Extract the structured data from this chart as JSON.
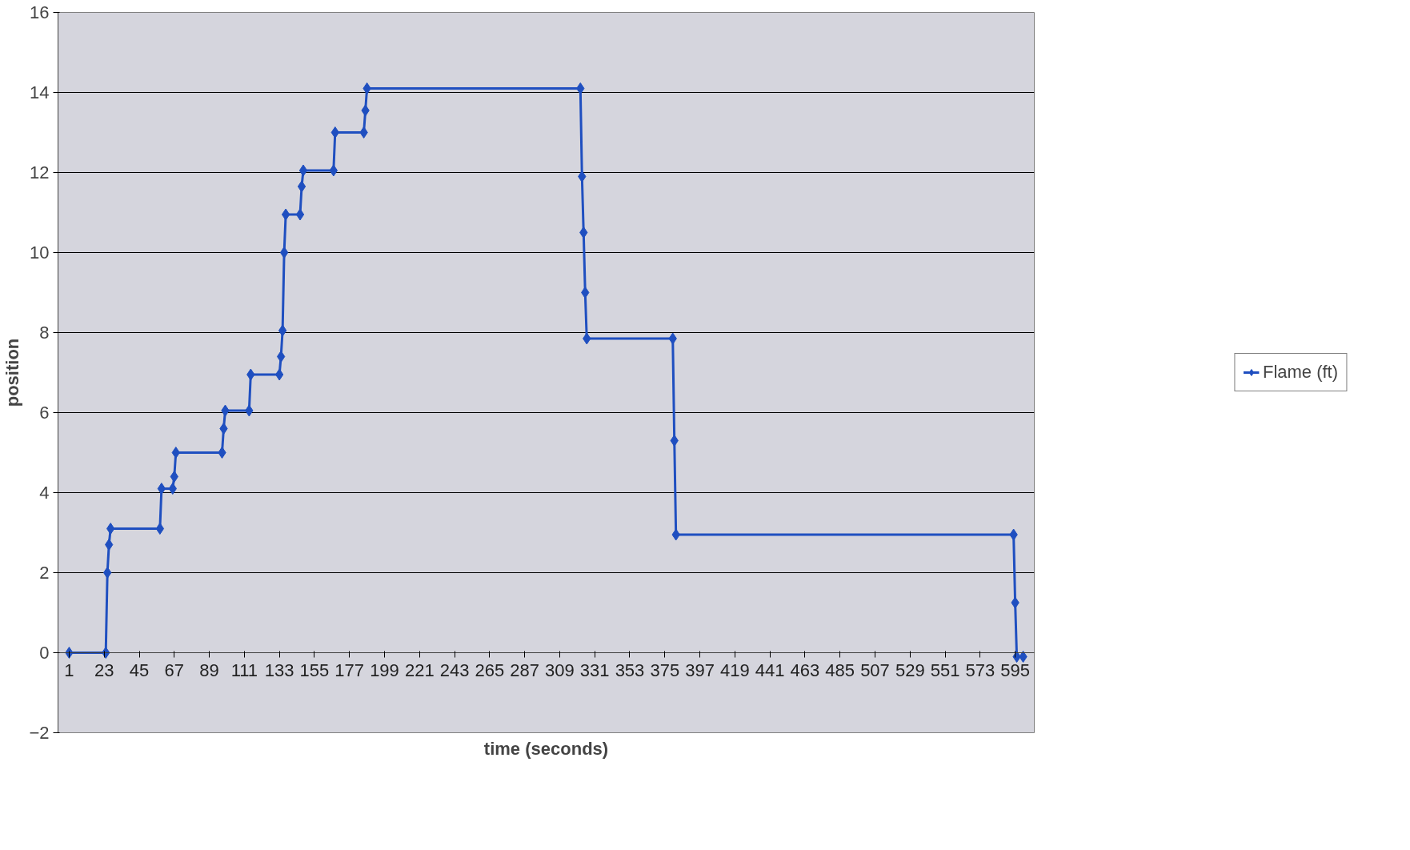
{
  "chart_data": {
    "type": "line",
    "xlabel": "time (seconds)",
    "ylabel": "position",
    "xlim": [
      -6,
      607
    ],
    "ylim": [
      -2,
      16
    ],
    "xticks": [
      1,
      23,
      45,
      67,
      89,
      111,
      133,
      155,
      177,
      199,
      221,
      243,
      265,
      287,
      309,
      331,
      353,
      375,
      397,
      419,
      441,
      463,
      485,
      507,
      529,
      551,
      573,
      595
    ],
    "yticks": [
      -2,
      0,
      2,
      4,
      6,
      8,
      10,
      12,
      14,
      16
    ],
    "grid": "y",
    "legend": "right",
    "marker": "diamond",
    "line_style": "solid",
    "series": [
      {
        "name": "Flame (ft)",
        "color": "#1f4fc0",
        "x": [
          1,
          24,
          25,
          26,
          27,
          58,
          59,
          66,
          67,
          68,
          97,
          98,
          99,
          114,
          115,
          133,
          134,
          135,
          136,
          137,
          146,
          147,
          148,
          167,
          168,
          186,
          187,
          188,
          322,
          323,
          324,
          325,
          326,
          380,
          381,
          382,
          594,
          595,
          596,
          600
        ],
        "values": [
          0,
          0,
          2.0,
          2.7,
          3.1,
          3.1,
          4.1,
          4.1,
          4.4,
          5.0,
          5.0,
          5.6,
          6.05,
          6.05,
          6.95,
          6.95,
          7.4,
          8.05,
          10.0,
          10.95,
          10.95,
          11.65,
          12.05,
          12.05,
          13.0,
          13.0,
          13.55,
          14.1,
          14.1,
          11.9,
          10.5,
          9.0,
          7.85,
          7.85,
          5.3,
          2.95,
          2.95,
          1.25,
          -0.1,
          -0.1
        ]
      }
    ]
  }
}
